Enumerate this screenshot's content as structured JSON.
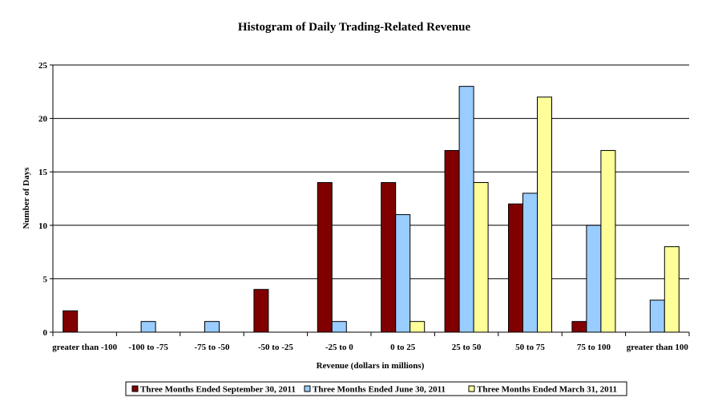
{
  "chart_data": {
    "type": "bar",
    "title": "Histogram of Daily Trading-Related Revenue",
    "xlabel": "Revenue (dollars in millions)",
    "ylabel": "Number of Days",
    "ylim": [
      0,
      25
    ],
    "yticks": [
      0,
      5,
      10,
      15,
      20,
      25
    ],
    "grid": true,
    "legend_position": "bottom",
    "categories": [
      "greater than -100",
      "-100 to -75",
      "-75 to -50",
      "-50 to -25",
      "-25 to 0",
      "0 to 25",
      "25 to 50",
      "50 to 75",
      "75 to 100",
      "greater than 100"
    ],
    "series": [
      {
        "name": "Three Months Ended September 30, 2011",
        "color": "#800000",
        "values": [
          2,
          0,
          0,
          4,
          14,
          14,
          17,
          12,
          1,
          0
        ]
      },
      {
        "name": "Three Months Ended June 30, 2011",
        "color": "#99ccff",
        "values": [
          0,
          1,
          1,
          0,
          1,
          11,
          23,
          13,
          10,
          3
        ]
      },
      {
        "name": "Three Months Ended March 31, 2011",
        "color": "#ffff99",
        "values": [
          0,
          0,
          0,
          0,
          0,
          1,
          14,
          22,
          17,
          8
        ]
      }
    ]
  }
}
